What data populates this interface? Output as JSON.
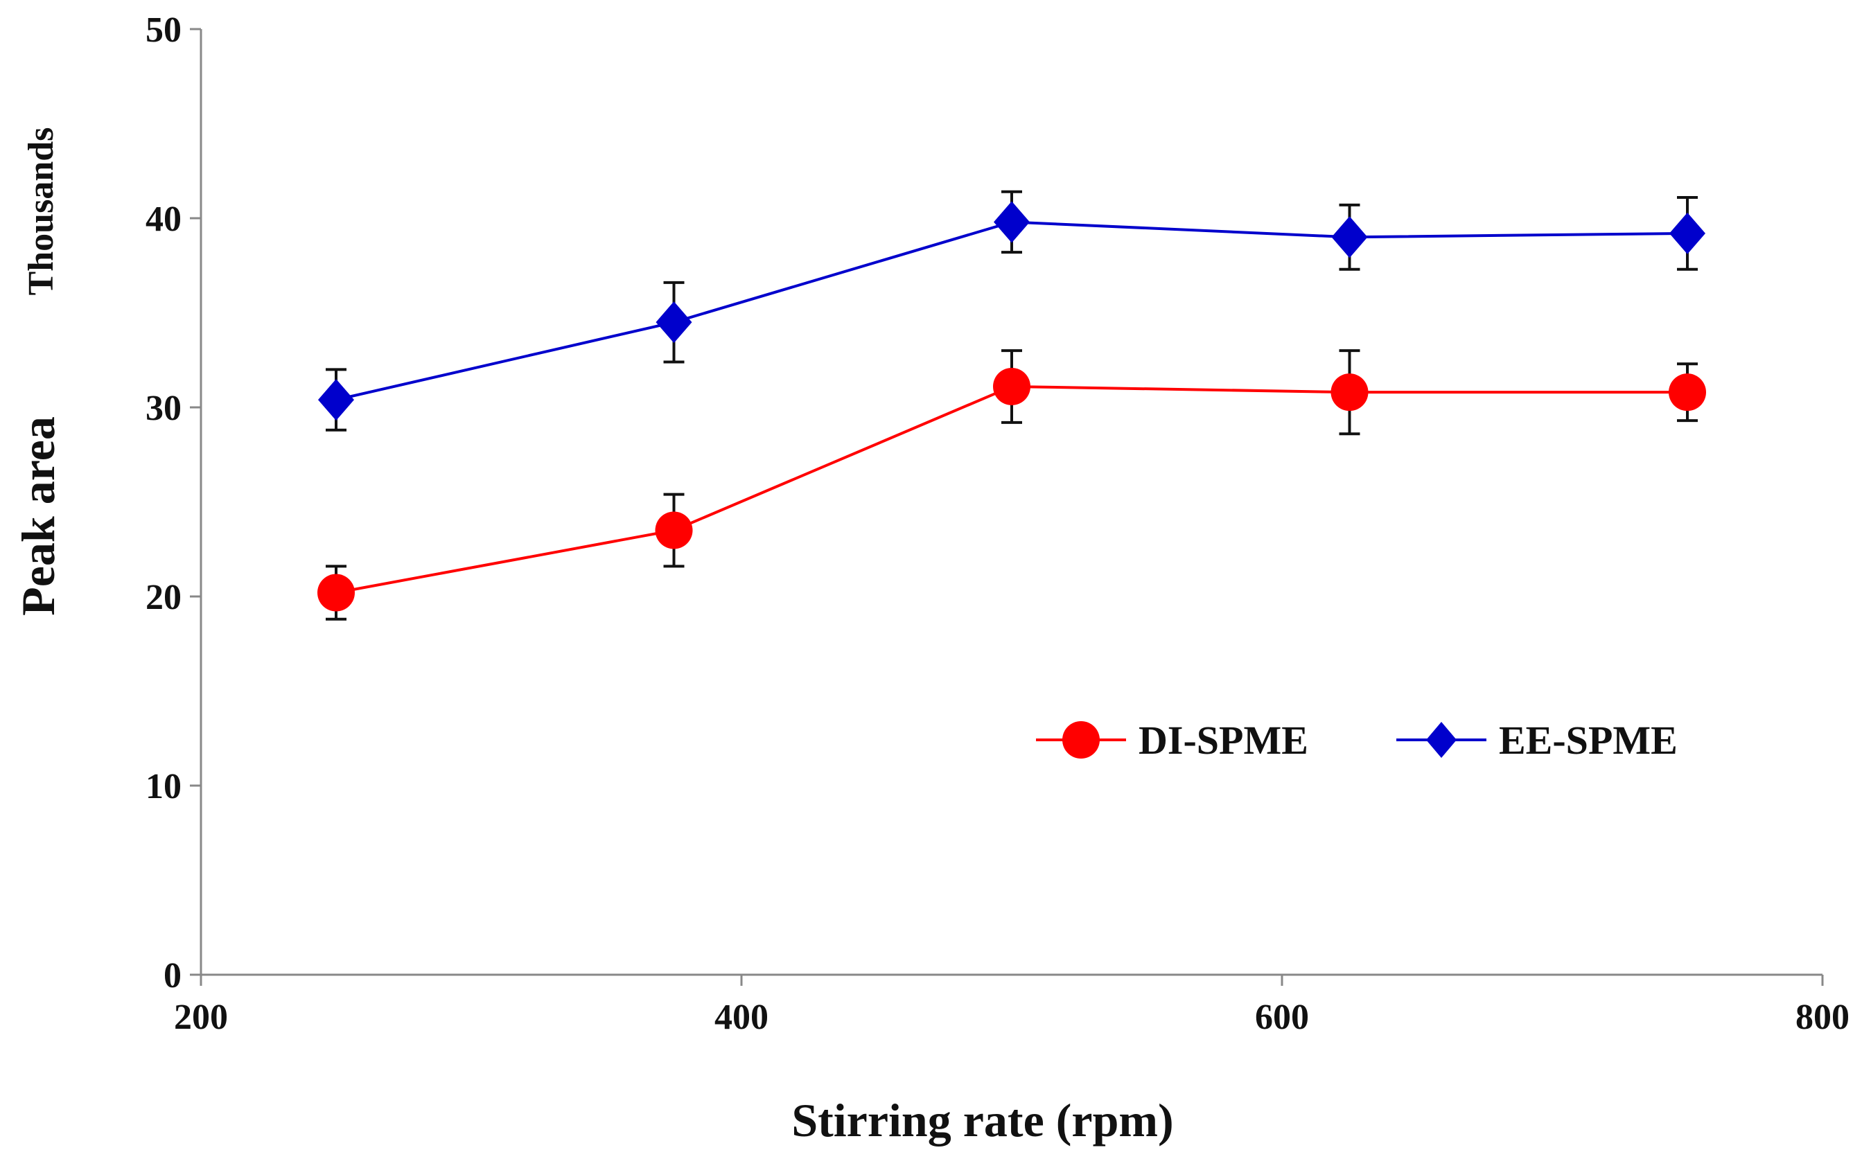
{
  "chart_data": {
    "type": "line",
    "xlabel": "Stirring rate (rpm)",
    "ylabel": "Peak area",
    "yunit_label": "Thousands",
    "xlim": [
      200,
      800
    ],
    "ylim": [
      0,
      50
    ],
    "xticks": [
      200,
      400,
      600,
      800
    ],
    "yticks": [
      0,
      10,
      20,
      30,
      40,
      50
    ],
    "grid": false,
    "legend_position": "middle-right",
    "x": [
      250,
      375,
      500,
      625,
      750
    ],
    "series": [
      {
        "name": "DI-SPME",
        "color": "#ff0000",
        "marker": "circle",
        "values": [
          20.2,
          23.5,
          31.1,
          30.8,
          30.8
        ],
        "errors": [
          1.4,
          1.9,
          1.9,
          2.2,
          1.5
        ]
      },
      {
        "name": "EE-SPME",
        "color": "#0000cc",
        "marker": "diamond",
        "values": [
          30.4,
          34.5,
          39.8,
          39.0,
          39.2
        ],
        "errors": [
          1.6,
          2.1,
          1.6,
          1.7,
          1.9
        ]
      }
    ]
  }
}
